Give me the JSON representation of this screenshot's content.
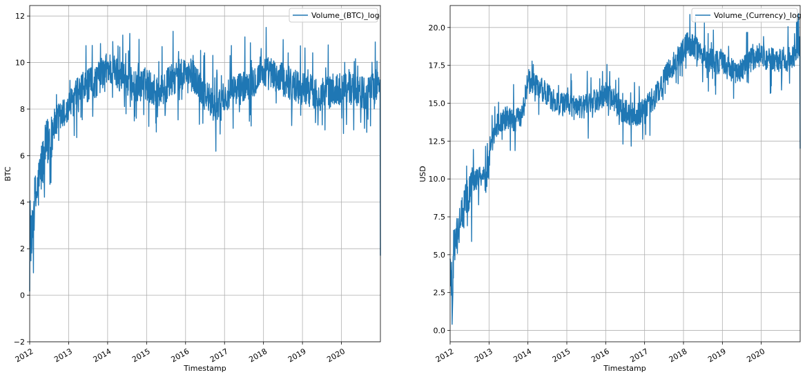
{
  "chart_data": [
    {
      "type": "line",
      "title": "",
      "xlabel": "Timestamp",
      "ylabel": "BTC",
      "legend": {
        "placement": "top-right",
        "entries": [
          "Volume_(BTC)_log"
        ]
      },
      "grid": true,
      "xlim": [
        2012.0,
        2021.0
      ],
      "ylim": [
        -2.0,
        12.45
      ],
      "xticks": [
        2012,
        2013,
        2014,
        2015,
        2016,
        2017,
        2018,
        2019,
        2020
      ],
      "xtick_labels": [
        "2012",
        "2013",
        "2014",
        "2015",
        "2016",
        "2017",
        "2018",
        "2019",
        "2020"
      ],
      "yticks": [
        -2,
        0,
        2,
        4,
        6,
        8,
        10,
        12
      ],
      "ytick_labels": [
        "−2",
        "0",
        "2",
        "4",
        "6",
        "8",
        "10",
        "12"
      ],
      "series": [
        {
          "name": "Volume_(BTC)_log",
          "color": "#1f77b4",
          "noise": 0.9,
          "x": [
            2012.0,
            2012.05,
            2012.1,
            2012.2,
            2012.3,
            2012.4,
            2012.5,
            2012.6,
            2012.75,
            2012.9,
            2013.0,
            2013.15,
            2013.3,
            2013.5,
            2013.7,
            2013.9,
            2014.0,
            2014.2,
            2014.4,
            2014.6,
            2014.8,
            2015.0,
            2015.2,
            2015.4,
            2015.6,
            2015.8,
            2016.0,
            2016.2,
            2016.4,
            2016.6,
            2016.8,
            2017.0,
            2017.2,
            2017.4,
            2017.6,
            2017.8,
            2018.0,
            2018.2,
            2018.4,
            2018.6,
            2018.8,
            2019.0,
            2019.2,
            2019.4,
            2019.6,
            2019.8,
            2020.0,
            2020.2,
            2020.4,
            2020.6,
            2020.8,
            2020.99,
            2021.0
          ],
          "y": [
            3.5,
            2.0,
            3.8,
            4.5,
            5.5,
            6.2,
            6.8,
            7.2,
            7.6,
            7.8,
            8.0,
            8.5,
            8.8,
            9.0,
            9.2,
            9.6,
            9.8,
            9.6,
            9.4,
            9.1,
            9.0,
            9.1,
            8.8,
            8.8,
            9.2,
            9.4,
            9.6,
            9.4,
            8.9,
            8.4,
            8.0,
            8.4,
            8.7,
            8.9,
            9.1,
            9.3,
            9.6,
            9.5,
            9.3,
            9.2,
            9.0,
            8.9,
            8.8,
            8.6,
            8.7,
            8.8,
            8.9,
            9.0,
            8.8,
            8.7,
            8.8,
            9.3,
            1.7
          ]
        }
      ]
    },
    {
      "type": "line",
      "title": "",
      "xlabel": "Timestamp",
      "ylabel": "USD",
      "legend": {
        "placement": "top-right",
        "entries": [
          "Volume_(Currency)_log"
        ]
      },
      "grid": true,
      "xlim": [
        2012.0,
        2021.0
      ],
      "ylim": [
        -0.75,
        21.45
      ],
      "xticks": [
        2012,
        2013,
        2014,
        2015,
        2016,
        2017,
        2018,
        2019,
        2020
      ],
      "xtick_labels": [
        "2012",
        "2013",
        "2014",
        "2015",
        "2016",
        "2017",
        "2018",
        "2019",
        "2020"
      ],
      "yticks": [
        0,
        2.5,
        5,
        7.5,
        10,
        12.5,
        15,
        17.5,
        20
      ],
      "ytick_labels": [
        "0.0",
        "2.5",
        "5.0",
        "7.5",
        "10.0",
        "12.5",
        "15.0",
        "17.5",
        "20.0"
      ],
      "series": [
        {
          "name": "Volume_(Currency)_log",
          "color": "#1f77b4",
          "noise": 1.0,
          "x": [
            2012.0,
            2012.05,
            2012.1,
            2012.2,
            2012.3,
            2012.4,
            2012.5,
            2012.6,
            2012.75,
            2012.9,
            2013.0,
            2013.1,
            2013.2,
            2013.35,
            2013.5,
            2013.7,
            2013.85,
            2014.0,
            2014.2,
            2014.4,
            2014.6,
            2014.8,
            2015.0,
            2015.2,
            2015.4,
            2015.6,
            2015.8,
            2016.0,
            2016.2,
            2016.4,
            2016.6,
            2016.8,
            2017.0,
            2017.2,
            2017.4,
            2017.6,
            2017.8,
            2017.95,
            2018.1,
            2018.3,
            2018.5,
            2018.7,
            2018.9,
            2019.0,
            2019.2,
            2019.4,
            2019.6,
            2019.8,
            2020.0,
            2020.2,
            2020.4,
            2020.6,
            2020.8,
            2020.99,
            2021.0
          ],
          "y": [
            5.0,
            1.5,
            5.5,
            6.5,
            7.5,
            8.5,
            9.3,
            9.8,
            10.2,
            10.6,
            11.0,
            12.5,
            13.5,
            14.0,
            14.0,
            13.8,
            14.5,
            16.5,
            16.2,
            15.8,
            15.3,
            15.0,
            14.9,
            14.7,
            14.7,
            15.0,
            15.3,
            15.6,
            15.2,
            14.6,
            14.3,
            14.2,
            14.7,
            15.2,
            16.0,
            17.0,
            17.8,
            18.3,
            19.0,
            18.7,
            18.2,
            17.8,
            17.7,
            17.8,
            17.2,
            17.0,
            17.5,
            18.0,
            18.2,
            17.9,
            17.8,
            17.8,
            18.0,
            18.8,
            12.0
          ]
        }
      ]
    }
  ]
}
